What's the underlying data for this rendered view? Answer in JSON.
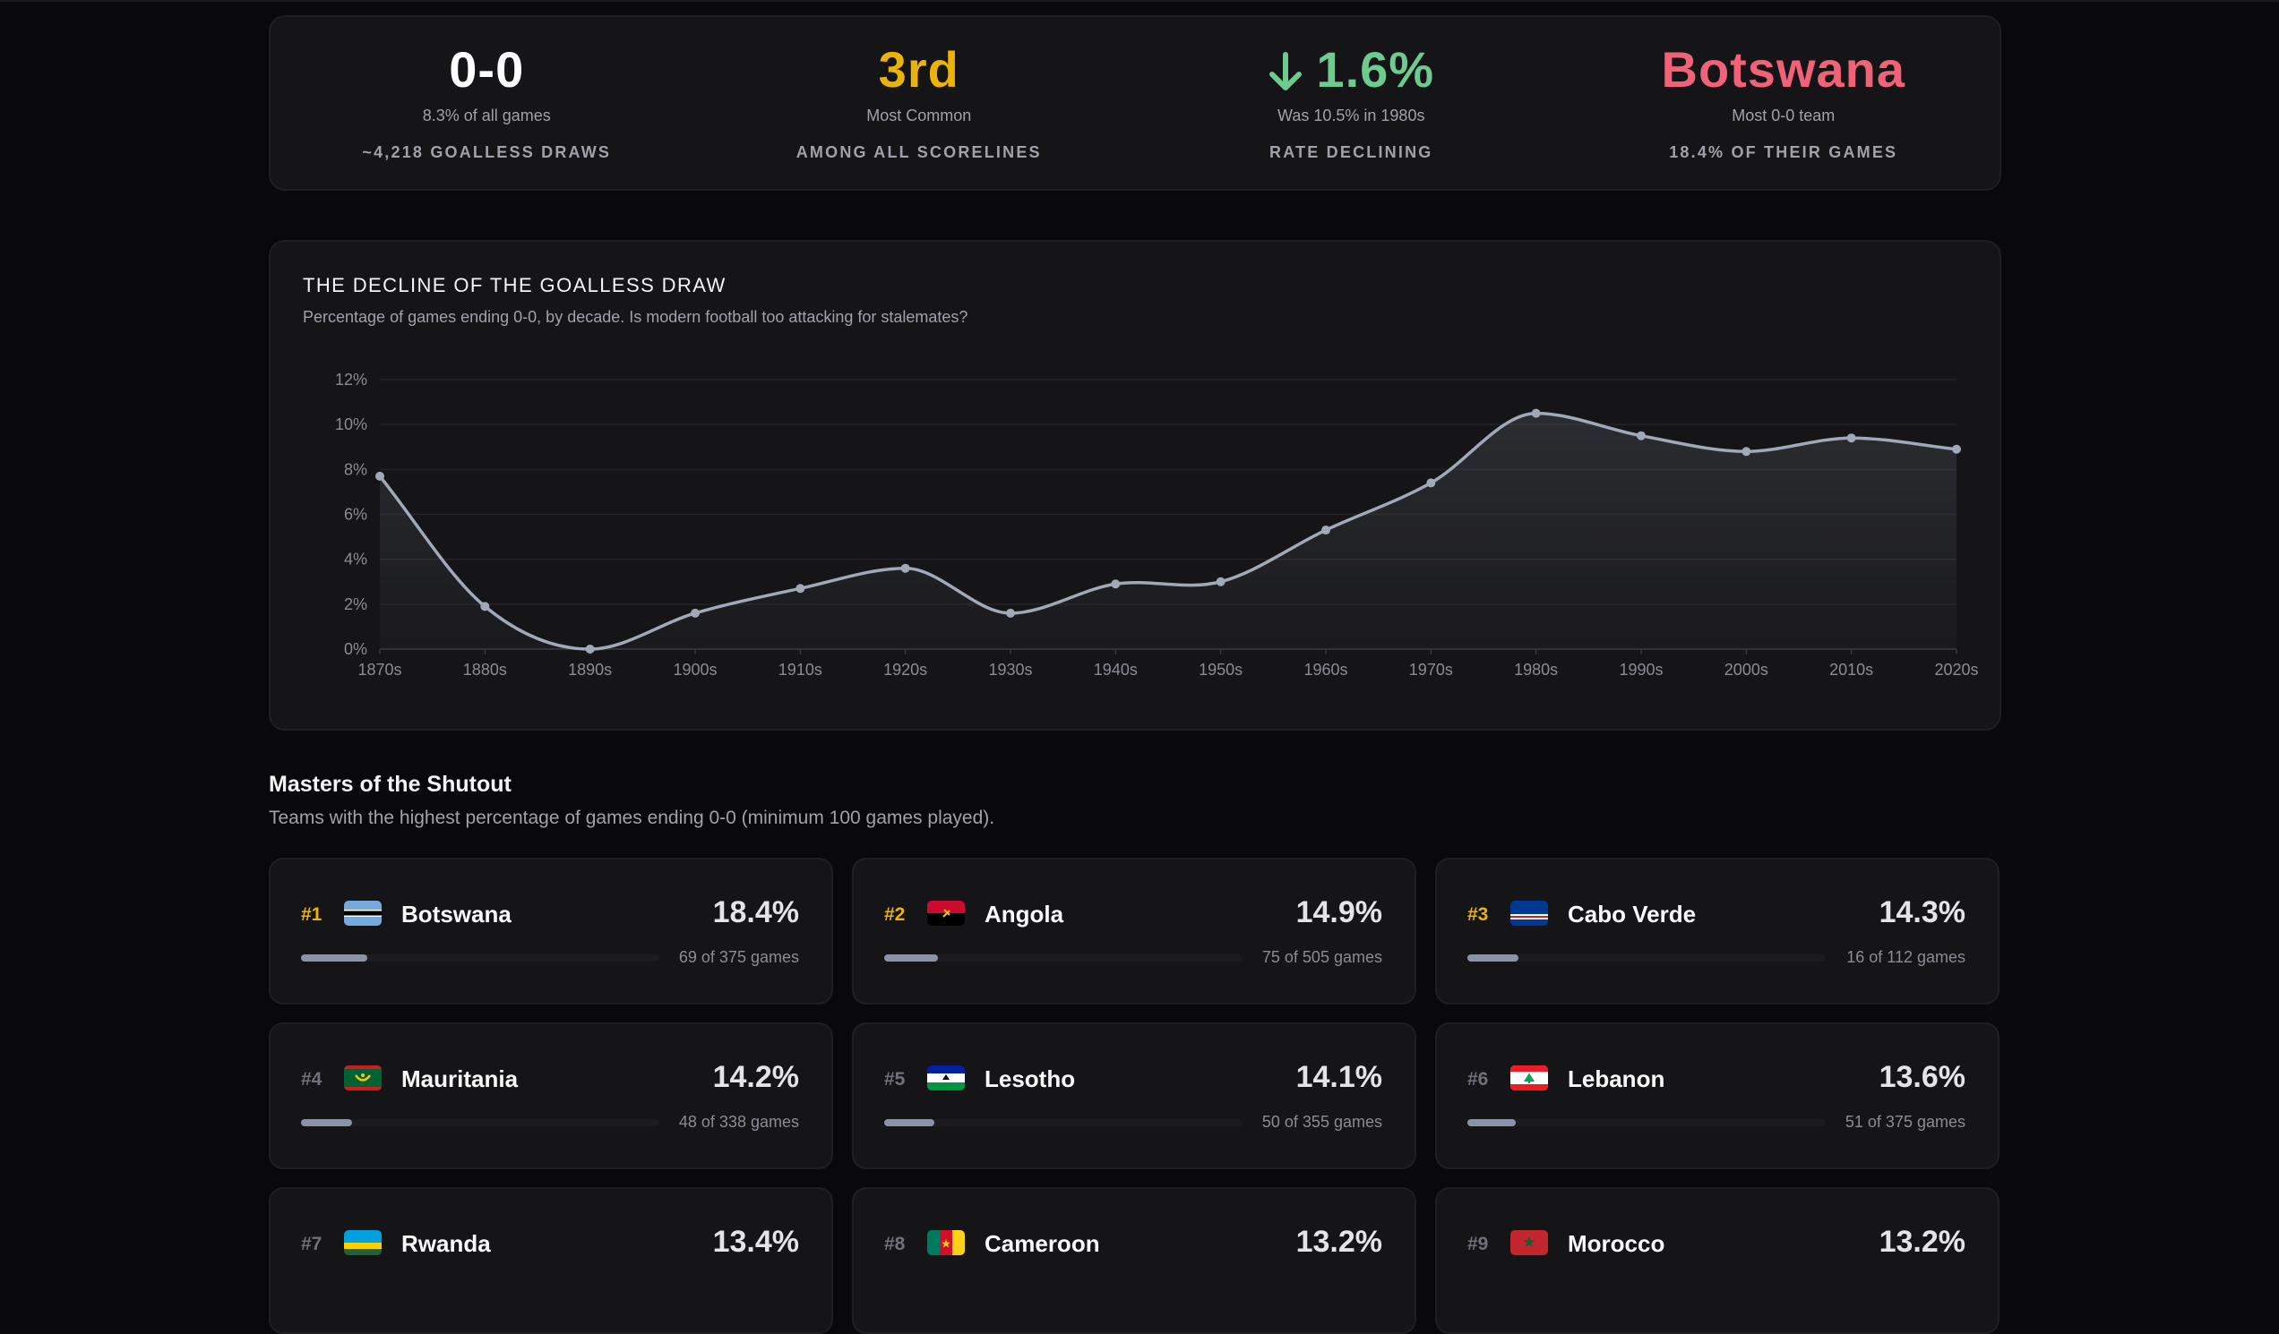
{
  "stats": [
    {
      "value": "0-0",
      "sub": "8.3% of all games",
      "caption": "~4,218 GOALLESS DRAWS",
      "color": "#ffffff"
    },
    {
      "value": "3rd",
      "sub": "Most Common",
      "caption": "AMONG ALL SCORELINES",
      "color": "#eab308"
    },
    {
      "value": "1.6%",
      "sub": "Was 10.5% in 1980s",
      "caption": "RATE DECLINING",
      "color": "#6ecb8f",
      "icon": "arrow-down-icon"
    },
    {
      "value": "Botswana",
      "sub": "Most 0-0 team",
      "caption": "18.4% OF THEIR GAMES",
      "color": "#f06277"
    }
  ],
  "chart": {
    "title": "THE DECLINE OF THE GOALLESS DRAW",
    "subtitle": "Percentage of games ending 0-0, by decade. Is modern football too attacking for stalemates?"
  },
  "chart_data": {
    "type": "area",
    "categories": [
      "1870s",
      "1880s",
      "1890s",
      "1900s",
      "1910s",
      "1920s",
      "1930s",
      "1940s",
      "1950s",
      "1960s",
      "1970s",
      "1980s",
      "1990s",
      "2000s",
      "2010s",
      "2020s"
    ],
    "series": [
      {
        "values": [
          7.7,
          1.9,
          0.0,
          1.6,
          2.7,
          3.6,
          1.6,
          2.9,
          3.0,
          5.3,
          7.4,
          10.5,
          9.5,
          8.8,
          9.4,
          8.9
        ]
      }
    ],
    "ylim": [
      0,
      12
    ],
    "yticks": [
      "0%",
      "2%",
      "4%",
      "6%",
      "8%",
      "10%",
      "12%"
    ],
    "grid": true,
    "line_color": "#a1a9b8"
  },
  "teams_section": {
    "title": "Masters of the Shutout",
    "description": "Teams with the highest percentage of games ending 0-0 (minimum 100 games played)."
  },
  "teams": [
    {
      "rank": "#1",
      "name": "Botswana",
      "pct": "18.4%",
      "games": "69 of 375 games",
      "fraction": 0.184
    },
    {
      "rank": "#2",
      "name": "Angola",
      "pct": "14.9%",
      "games": "75 of 505 games",
      "fraction": 0.149
    },
    {
      "rank": "#3",
      "name": "Cabo Verde",
      "pct": "14.3%",
      "games": "16 of 112 games",
      "fraction": 0.143
    },
    {
      "rank": "#4",
      "name": "Mauritania",
      "pct": "14.2%",
      "games": "48 of 338 games",
      "fraction": 0.142
    },
    {
      "rank": "#5",
      "name": "Lesotho",
      "pct": "14.1%",
      "games": "50 of 355 games",
      "fraction": 0.141
    },
    {
      "rank": "#6",
      "name": "Lebanon",
      "pct": "13.6%",
      "games": "51 of 375 games",
      "fraction": 0.136
    },
    {
      "rank": "#7",
      "name": "Rwanda",
      "pct": "13.4%",
      "games": "",
      "fraction": 0.134
    },
    {
      "rank": "#8",
      "name": "Cameroon",
      "pct": "13.2%",
      "games": "",
      "fraction": 0.132
    },
    {
      "rank": "#9",
      "name": "Morocco",
      "pct": "13.2%",
      "games": "",
      "fraction": 0.132
    }
  ]
}
